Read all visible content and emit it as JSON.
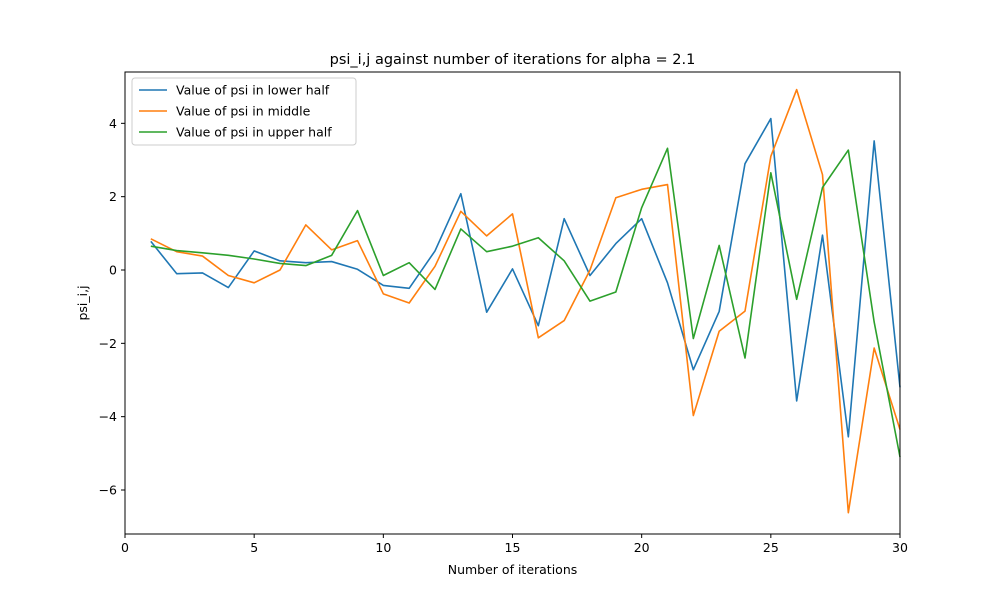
{
  "chart_data": {
    "type": "line",
    "title": "psi_i,j against number of iterations for alpha = 2.1",
    "xlabel": "Number of iterations",
    "ylabel": "psi_i,j",
    "xlim": [
      0,
      30
    ],
    "ylim": [
      -7.2,
      5.4
    ],
    "xticks": [
      0,
      5,
      10,
      15,
      20,
      25,
      30
    ],
    "yticks": [
      -6,
      -4,
      -2,
      0,
      2,
      4
    ],
    "ytick_labels": [
      "−6",
      "−4",
      "−2",
      "0",
      "2",
      "4"
    ],
    "grid": false,
    "legend_position": "top-left",
    "x": [
      1,
      2,
      3,
      4,
      5,
      6,
      7,
      8,
      9,
      10,
      11,
      12,
      13,
      14,
      15,
      16,
      17,
      18,
      19,
      20,
      21,
      22,
      23,
      24,
      25,
      26,
      27,
      28,
      29,
      30
    ],
    "series": [
      {
        "name": "Value of psi in lower half",
        "color": "#1f77b4",
        "values": [
          0.78,
          -0.1,
          -0.08,
          -0.48,
          0.52,
          0.25,
          0.2,
          0.23,
          0.02,
          -0.42,
          -0.5,
          0.52,
          2.08,
          -1.15,
          0.03,
          -1.52,
          1.4,
          -0.15,
          0.72,
          1.4,
          -0.35,
          -2.72,
          -1.13,
          2.9,
          4.13,
          -3.57,
          0.95,
          -4.55,
          3.52,
          -3.2
        ]
      },
      {
        "name": "Value of psi in middle",
        "color": "#ff7f0e",
        "values": [
          0.85,
          0.5,
          0.38,
          -0.15,
          -0.35,
          0.0,
          1.23,
          0.55,
          0.8,
          -0.65,
          -0.9,
          0.1,
          1.6,
          0.93,
          1.53,
          -1.85,
          -1.38,
          0.0,
          1.97,
          2.2,
          2.33,
          -3.97,
          -1.67,
          -1.12,
          3.1,
          4.92,
          2.6,
          -6.62,
          -2.13,
          -4.35
        ]
      },
      {
        "name": "Value of psi in upper half",
        "color": "#2ca02c",
        "values": [
          0.65,
          0.53,
          0.47,
          0.4,
          0.3,
          0.18,
          0.12,
          0.4,
          1.62,
          -0.15,
          0.2,
          -0.53,
          1.12,
          0.5,
          0.65,
          0.88,
          0.25,
          -0.85,
          -0.6,
          1.7,
          3.32,
          -1.87,
          0.67,
          -2.4,
          2.65,
          -0.8,
          2.25,
          3.27,
          -1.42,
          -5.1
        ]
      }
    ]
  }
}
